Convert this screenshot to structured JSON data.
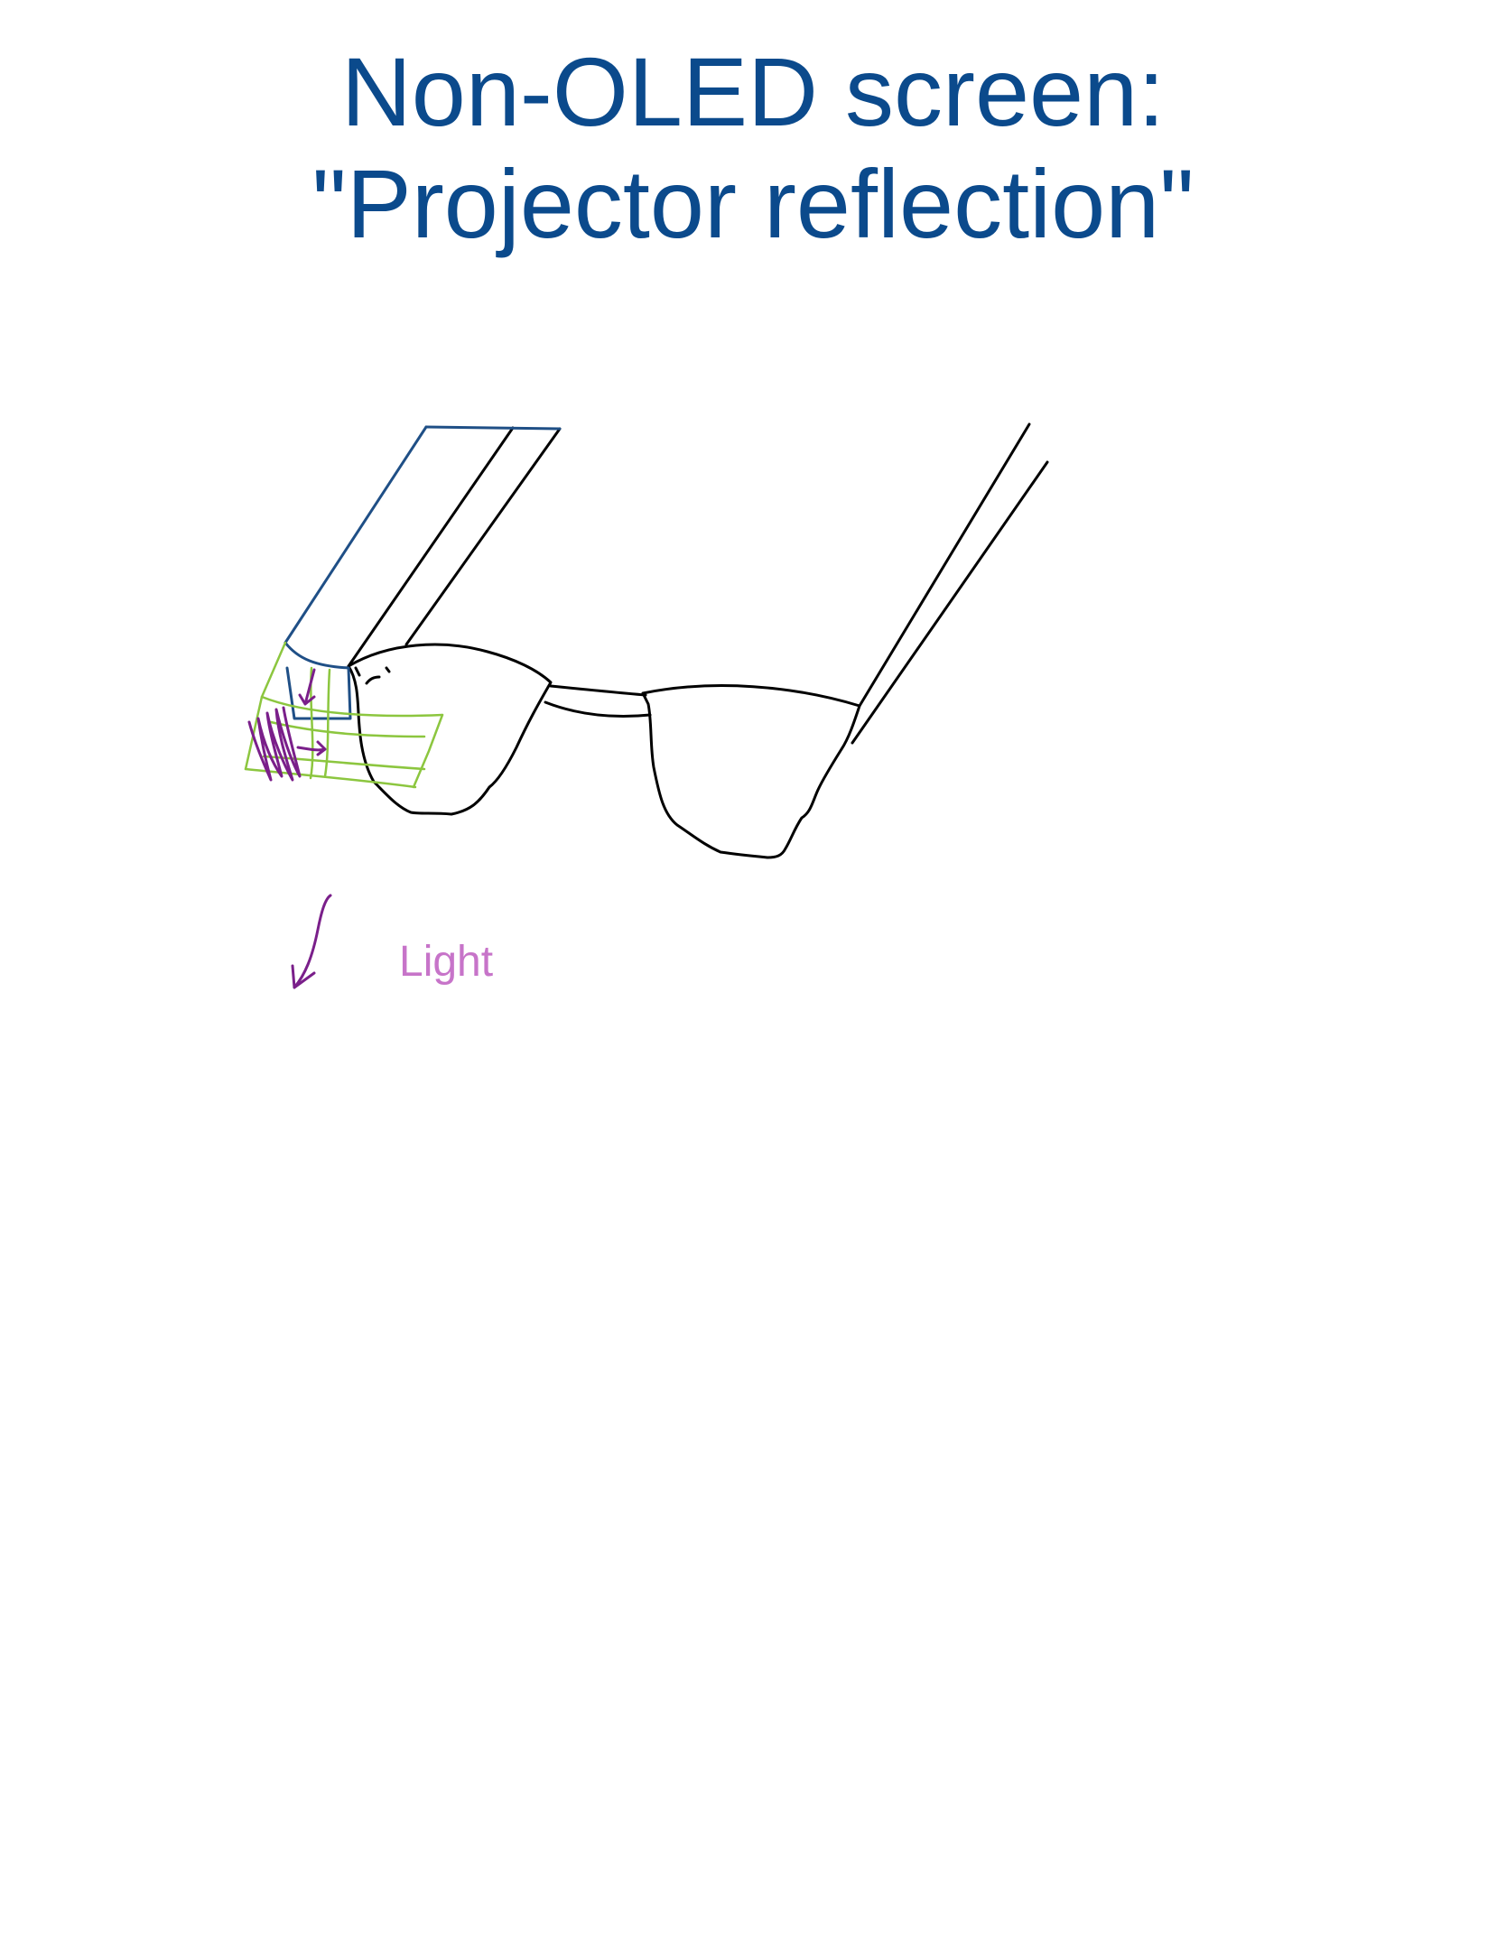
{
  "title": {
    "line1": "Non-OLED screen:",
    "line2": "\"Projector reflection\""
  },
  "annotations": {
    "light_label": "Light"
  },
  "colors": {
    "title": "#0b4a8c",
    "glasses_outline": "#000000",
    "projector_outline": "#1f4f86",
    "projection_wireframe": "#8cc63f",
    "light_scribble": "#7a1f8a",
    "light_label": "#c774c9"
  }
}
